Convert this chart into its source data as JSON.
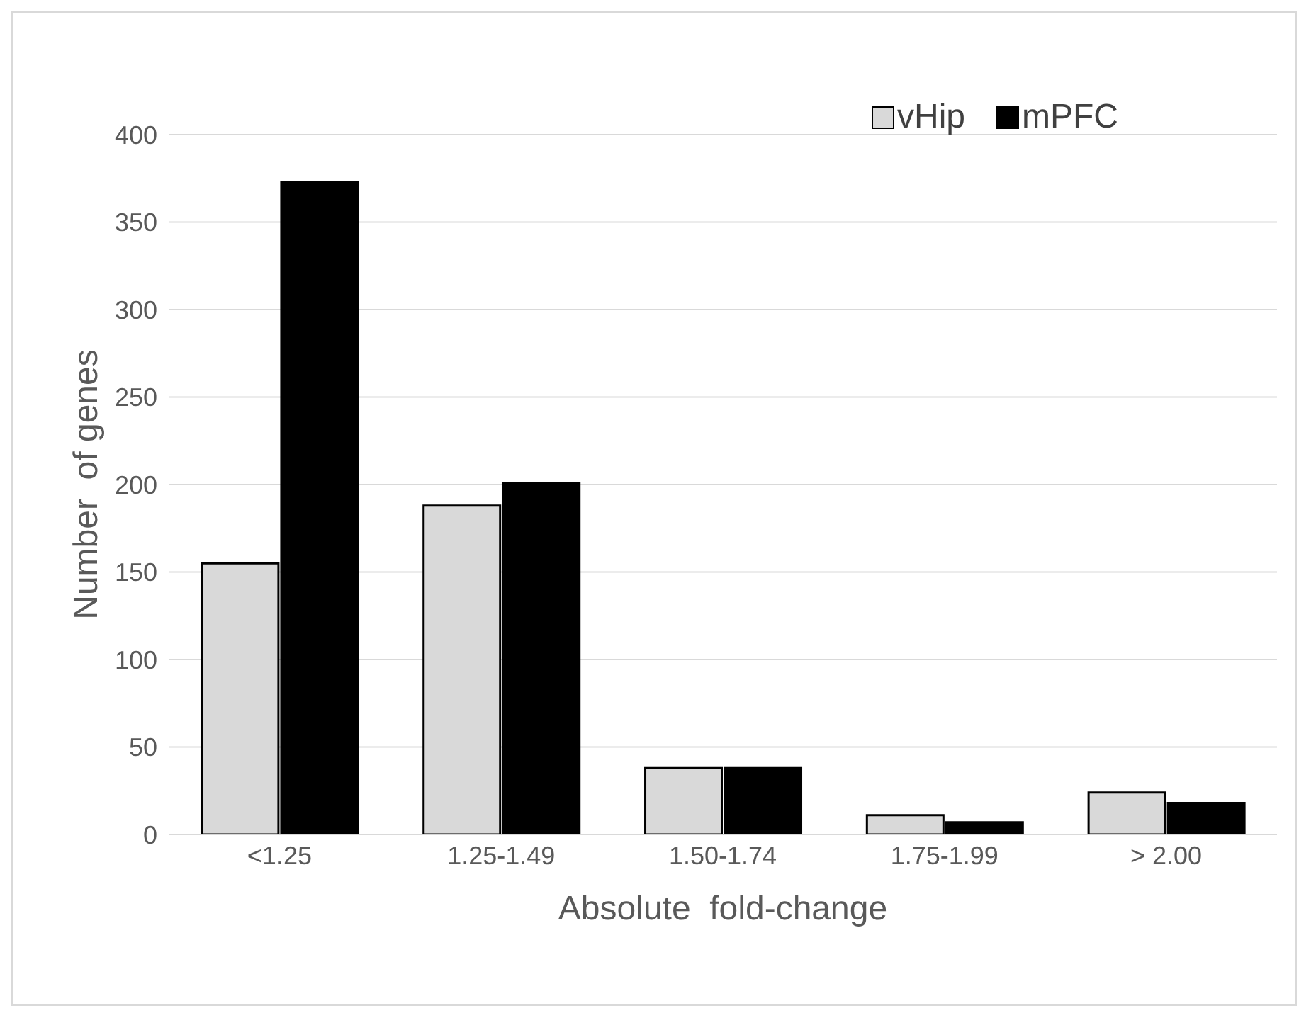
{
  "chart_data": {
    "type": "bar",
    "xlabel": "Absolute  fold-change",
    "ylabel": "Number  of genes",
    "categories": [
      "<1.25",
      "1.25-1.49",
      "1.50-1.74",
      "1.75-1.99",
      "> 2.00"
    ],
    "series": [
      {
        "name": "vHip",
        "color": "#d9d9d9",
        "values": [
          155,
          188,
          38,
          11,
          24
        ]
      },
      {
        "name": "mPFC",
        "color": "#000000",
        "values": [
          373,
          201,
          38,
          7,
          18
        ]
      }
    ],
    "ylim": [
      0,
      400
    ],
    "yticks": [
      0,
      50,
      100,
      150,
      200,
      250,
      300,
      350,
      400
    ],
    "grid": "y",
    "legend": "top right"
  }
}
